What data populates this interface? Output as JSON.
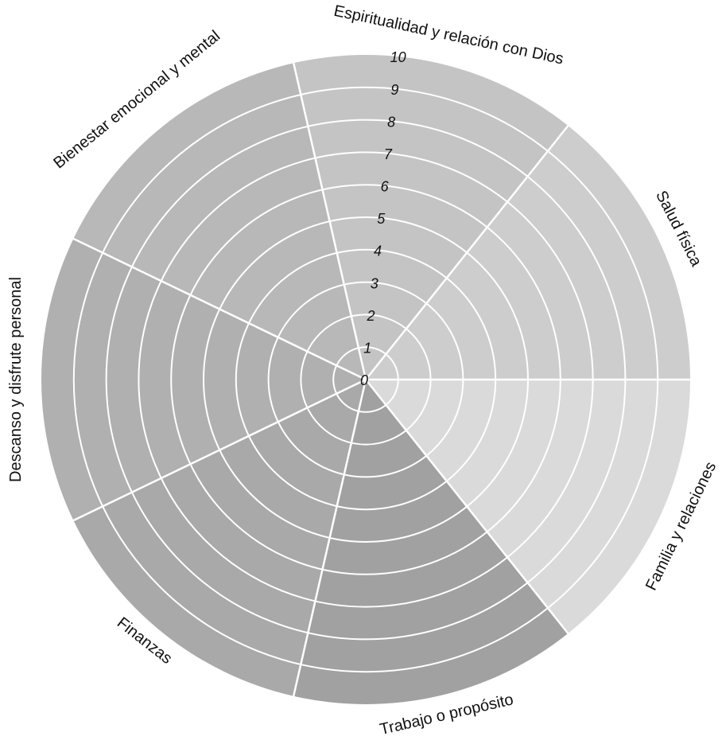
{
  "chart_data": {
    "type": "polar-area",
    "title": "",
    "categories": [
      "Salud física",
      "Familia y relaciones",
      "Trabajo o propósito",
      "Finanzas",
      "Descanso y disfrute personal",
      "Bienestar emocional y mental",
      "Espiritualidad y relación con Dios"
    ],
    "scale_min": 0,
    "scale_max": 10,
    "scale_ticks": [
      "0",
      "1",
      "2",
      "3",
      "4",
      "5",
      "6",
      "7",
      "8",
      "9",
      "10"
    ],
    "segment_colors": [
      "#dadada",
      "#a1a1a1",
      "#a9a9a9",
      "#b0b0b0",
      "#b8b8b8",
      "#c4c4c4",
      "#cdcdcd"
    ],
    "ring_color": "#ffffff",
    "label_color": "#111111"
  }
}
